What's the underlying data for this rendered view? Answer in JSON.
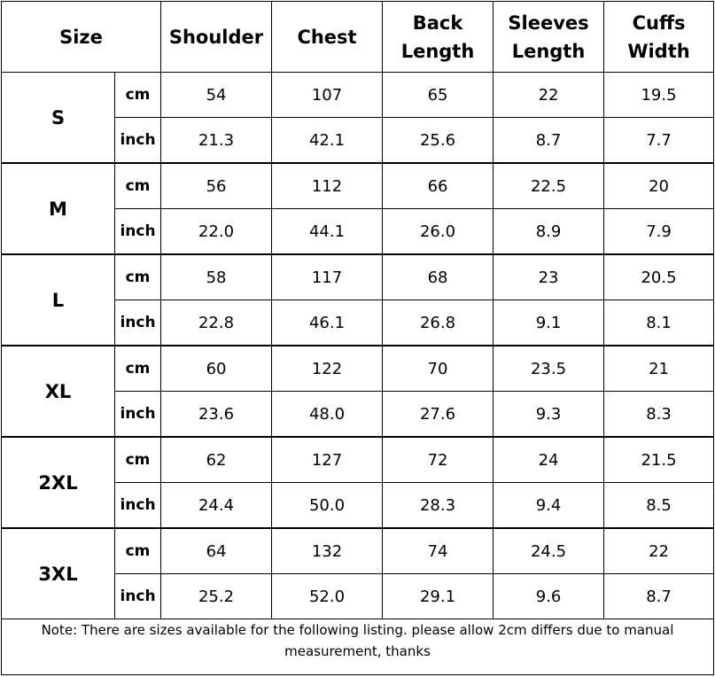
{
  "headers": {
    "size": "Size",
    "shoulder": "Shoulder",
    "chest": "Chest",
    "back_length": [
      "Back",
      "Length"
    ],
    "sleeves_length": [
      "Sleeves",
      "Length"
    ],
    "cuffs_width": [
      "Cuffs",
      "Width"
    ]
  },
  "rows": [
    {
      "size": "S",
      "cm": {
        "unit": "cm",
        "values": [
          "54",
          "107",
          "65",
          "22",
          "19.5"
        ]
      },
      "inch": {
        "unit": "inch",
        "values": [
          "21.3",
          "42.1",
          "25.6",
          "8.7",
          "7.7"
        ]
      }
    },
    {
      "size": "M",
      "cm": {
        "unit": "cm",
        "values": [
          "56",
          "112",
          "66",
          "22.5",
          "20"
        ]
      },
      "inch": {
        "unit": "inch",
        "values": [
          "22.0",
          "44.1",
          "26.0",
          "8.9",
          "7.9"
        ]
      }
    },
    {
      "size": "L",
      "cm": {
        "unit": "cm",
        "values": [
          "58",
          "117",
          "68",
          "23",
          "20.5"
        ]
      },
      "inch": {
        "unit": "inch",
        "values": [
          "22.8",
          "46.1",
          "26.8",
          "9.1",
          "8.1"
        ]
      }
    },
    {
      "size": "XL",
      "cm": {
        "unit": "cm",
        "values": [
          "60",
          "122",
          "70",
          "23.5",
          "21"
        ]
      },
      "inch": {
        "unit": "inch",
        "values": [
          "23.6",
          "48.0",
          "27.6",
          "9.3",
          "8.3"
        ]
      }
    },
    {
      "size": "2XL",
      "cm": {
        "unit": "cm",
        "values": [
          "62",
          "127",
          "72",
          "24",
          "21.5"
        ]
      },
      "inch": {
        "unit": "inch",
        "values": [
          "24.4",
          "50.0",
          "28.3",
          "9.4",
          "8.5"
        ]
      }
    },
    {
      "size": "3XL",
      "cm": {
        "unit": "cm",
        "values": [
          "64",
          "132",
          "74",
          "24.5",
          "22"
        ]
      },
      "inch": {
        "unit": "inch",
        "values": [
          "25.2",
          "52.0",
          "29.1",
          "9.6",
          "8.7"
        ]
      }
    }
  ],
  "note": "Note: There are sizes available for the following listing. please allow 2cm differs due to manual measurement, thanks"
}
